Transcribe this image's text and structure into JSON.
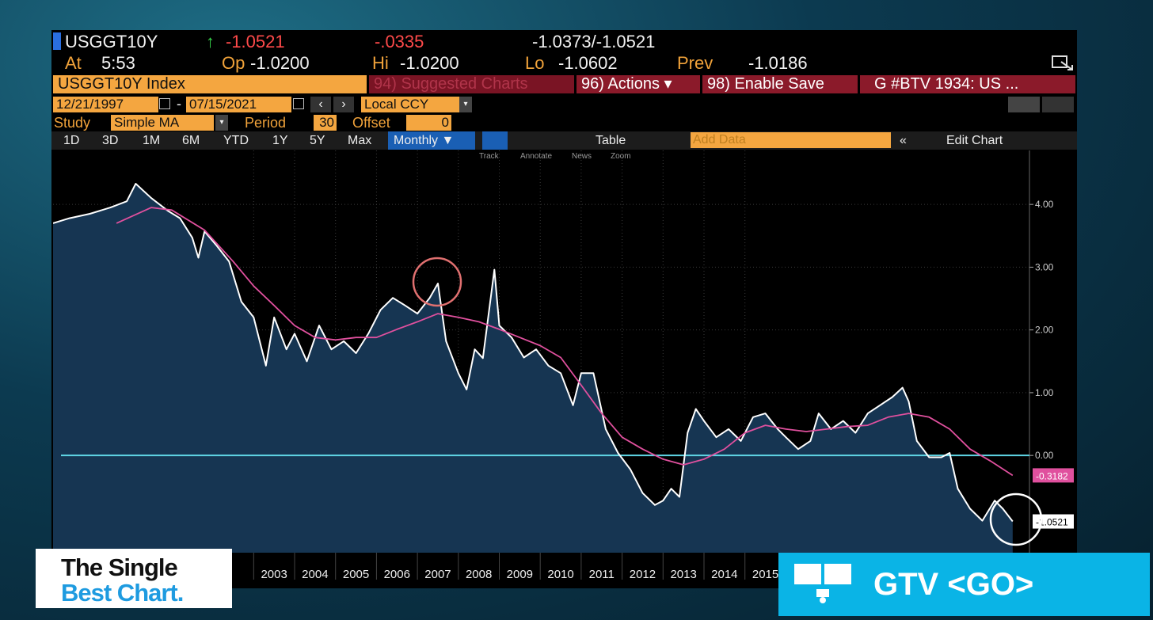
{
  "header": {
    "ticker": "USGGT10Y",
    "last": "-1.0521",
    "change": "-.0335",
    "bid_ask": "-1.0373/-1.0521",
    "quote": [
      {
        "label": "At",
        "value": "5:53"
      },
      {
        "label": "Op",
        "value": "-1.0200"
      },
      {
        "label": "Hi",
        "value": "-1.0200"
      },
      {
        "label": "Lo",
        "value": "-1.0602"
      },
      {
        "label": "Prev",
        "value": "-1.0186"
      }
    ],
    "security": "USGGT10Y Index",
    "menu": [
      "94) Suggested Charts",
      "96) Actions ▾",
      "98) Enable Save",
      "G #BTV 1934: US ..."
    ],
    "start_date": "12/21/1997",
    "end_date": "07/15/2021",
    "currency": "Local CCY",
    "study": {
      "label": "Study",
      "value": "Simple MA"
    },
    "period": {
      "label": "Period",
      "value": "30"
    },
    "offset": {
      "label": "Offset",
      "value": "0"
    },
    "ranges": [
      "1D",
      "3D",
      "1M",
      "6M",
      "YTD",
      "1Y",
      "5Y",
      "Max"
    ],
    "frequency": "Monthly ▼",
    "table": "Table",
    "add_data": "Add Data",
    "edit_chart": "Edit Chart",
    "tools": [
      "Track",
      "Annotate",
      "News",
      "Zoom"
    ]
  },
  "chart_data": {
    "type": "line",
    "xlim": [
      1998.1,
      2021.95
    ],
    "ylim": [
      -1.55,
      4.86
    ],
    "xticks": [
      2003,
      2004,
      2005,
      2006,
      2007,
      2008,
      2009,
      2010,
      2011,
      2012,
      2013,
      2014,
      2015
    ],
    "yticks": [
      {
        "value": 4,
        "label": "4.00"
      },
      {
        "value": 3,
        "label": "3.00"
      },
      {
        "value": 2,
        "label": "2.00"
      },
      {
        "value": 1,
        "label": "1.00"
      },
      {
        "value": 0,
        "label": "0.00"
      }
    ],
    "grid": true,
    "reference_line": {
      "value": 0,
      "color": "#5fd6e6"
    },
    "series": [
      {
        "color": "#ffffff",
        "fill": "#163552",
        "x": [
          1998.1,
          1998.5,
          1999.0,
          1999.5,
          1999.9,
          2000.12,
          2000.5,
          2000.9,
          2001.2,
          2001.5,
          2001.65,
          2001.8,
          2002.1,
          2002.4,
          2002.7,
          2003.0,
          2003.3,
          2003.5,
          2003.8,
          2004.0,
          2004.3,
          2004.6,
          2004.9,
          2005.2,
          2005.5,
          2005.8,
          2006.1,
          2006.4,
          2006.7,
          2007.0,
          2007.3,
          2007.5,
          2007.7,
          2008.0,
          2008.2,
          2008.4,
          2008.6,
          2008.88,
          2009.0,
          2009.3,
          2009.6,
          2009.9,
          2010.2,
          2010.5,
          2010.8,
          2011.0,
          2011.3,
          2011.6,
          2011.9,
          2012.2,
          2012.5,
          2012.8,
          2013.0,
          2013.2,
          2013.4,
          2013.6,
          2013.8,
          2014.0,
          2014.3,
          2014.6,
          2014.9,
          2015.2,
          2015.5,
          2015.8,
          2016.0,
          2016.3,
          2016.6,
          2016.8,
          2017.1,
          2017.4,
          2017.7,
          2018.0,
          2018.3,
          2018.6,
          2018.85,
          2019.0,
          2019.2,
          2019.5,
          2019.8,
          2020.0,
          2020.2,
          2020.5,
          2020.8,
          2021.1,
          2021.3,
          2021.54
        ],
        "values": [
          3.7,
          3.78,
          3.85,
          3.95,
          4.05,
          4.33,
          4.1,
          3.9,
          3.78,
          3.47,
          3.15,
          3.57,
          3.34,
          3.09,
          2.45,
          2.2,
          1.43,
          2.2,
          1.69,
          1.94,
          1.5,
          2.07,
          1.69,
          1.82,
          1.63,
          1.94,
          2.32,
          2.51,
          2.39,
          2.26,
          2.51,
          2.74,
          1.82,
          1.31,
          1.05,
          1.69,
          1.55,
          2.96,
          2.07,
          1.88,
          1.56,
          1.69,
          1.43,
          1.31,
          0.8,
          1.31,
          1.31,
          0.42,
          0.04,
          -0.22,
          -0.6,
          -0.79,
          -0.72,
          -0.53,
          -0.66,
          0.36,
          0.74,
          0.55,
          0.29,
          0.42,
          0.23,
          0.61,
          0.67,
          0.42,
          0.29,
          0.1,
          0.23,
          0.67,
          0.42,
          0.55,
          0.36,
          0.67,
          0.8,
          0.93,
          1.08,
          0.86,
          0.23,
          -0.03,
          -0.03,
          0.04,
          -0.53,
          -0.85,
          -1.04,
          -0.72,
          -0.85,
          -1.0521
        ]
      },
      {
        "color": "#e0509e",
        "x": [
          1999.65,
          2000.5,
          2001.0,
          2001.8,
          2002.5,
          2003.0,
          2003.5,
          2004.0,
          2004.5,
          2005.0,
          2005.5,
          2006.0,
          2006.5,
          2007.0,
          2007.5,
          2008.0,
          2008.5,
          2009.0,
          2009.5,
          2010.0,
          2010.5,
          2011.0,
          2011.5,
          2012.0,
          2012.5,
          2013.0,
          2013.5,
          2014.0,
          2014.5,
          2015.0,
          2015.5,
          2016.0,
          2016.5,
          2017.0,
          2017.5,
          2018.0,
          2018.5,
          2019.0,
          2019.5,
          2020.0,
          2020.5,
          2021.0,
          2021.54
        ],
        "values": [
          3.7,
          3.95,
          3.91,
          3.59,
          3.09,
          2.7,
          2.39,
          2.07,
          1.88,
          1.84,
          1.88,
          1.88,
          2.01,
          2.13,
          2.26,
          2.2,
          2.13,
          2.01,
          1.88,
          1.75,
          1.56,
          1.12,
          0.67,
          0.29,
          0.1,
          -0.06,
          -0.15,
          -0.06,
          0.1,
          0.36,
          0.48,
          0.42,
          0.38,
          0.42,
          0.46,
          0.48,
          0.61,
          0.67,
          0.61,
          0.42,
          0.1,
          -0.09,
          -0.3182
        ]
      }
    ]
  },
  "overlay": {
    "brand": [
      "The Single",
      "Best Chart."
    ],
    "command": "GTV <GO>"
  }
}
